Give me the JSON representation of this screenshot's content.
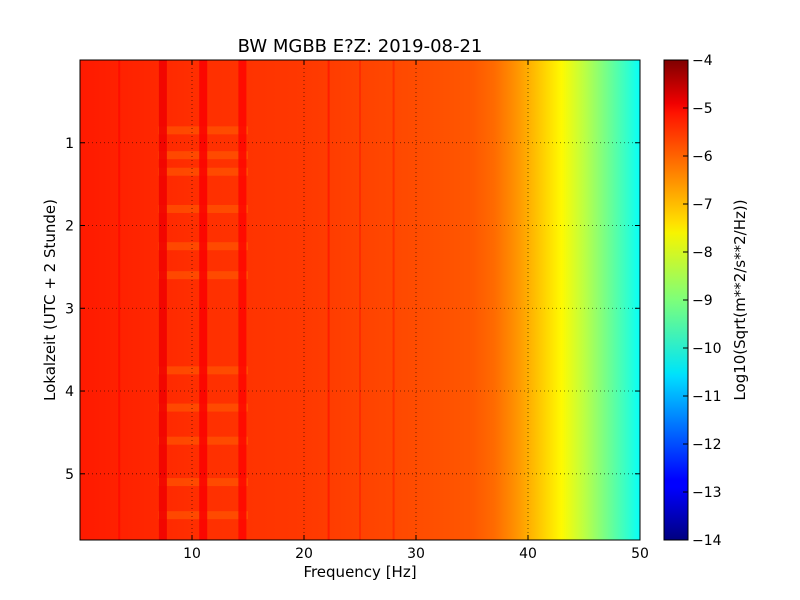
{
  "chart_data": {
    "type": "heatmap",
    "title": "BW MGBB E?Z: 2019-08-21",
    "xlabel": "Frequency [Hz]",
    "ylabel": "Lokalzeit (UTC + 2 Stunde)",
    "colorbar_label": "Log10(Sqrt(m**2/s**2/Hz))",
    "xlim": [
      0,
      50
    ],
    "ylim": [
      0,
      5.8
    ],
    "y_inverted": true,
    "x_ticks": [
      10,
      20,
      30,
      40,
      50
    ],
    "y_ticks": [
      1,
      2,
      3,
      4,
      5
    ],
    "colorbar_range": [
      -14,
      -4
    ],
    "colorbar_ticks": [
      -4,
      -5,
      -6,
      -7,
      -8,
      -9,
      -10,
      -11,
      -12,
      -13,
      -14
    ],
    "colormap": "jet",
    "grid": true,
    "background_value": -5.9,
    "spectrum_profile": {
      "frequency": [
        0,
        5,
        10,
        20,
        25,
        30,
        35,
        37,
        39,
        41,
        43,
        45,
        47,
        49,
        50
      ],
      "value": [
        -5.5,
        -5.6,
        -5.7,
        -5.8,
        -5.9,
        -6.0,
        -6.1,
        -6.3,
        -6.7,
        -7.2,
        -7.7,
        -8.4,
        -9.1,
        -9.8,
        -10.2
      ]
    },
    "strong_lines": [
      {
        "frequency": 7.4,
        "value": -5.1
      },
      {
        "frequency": 14.5,
        "value": -5.3
      },
      {
        "frequency": 11.0,
        "value": -5.2
      }
    ],
    "weak_lines": [
      {
        "frequency": 3.5,
        "value": -5.3
      },
      {
        "frequency": 22.2,
        "value": -5.4
      },
      {
        "frequency": 25.0,
        "value": -5.6
      },
      {
        "frequency": 28.0,
        "value": -5.6
      }
    ],
    "intermittent_bands": [
      {
        "time": 0.85,
        "value": -6.2
      },
      {
        "time": 1.15,
        "value": -6.2
      },
      {
        "time": 1.35,
        "value": -6.2
      },
      {
        "time": 1.8,
        "value": -6.2
      },
      {
        "time": 2.25,
        "value": -6.2
      },
      {
        "time": 2.6,
        "value": -6.2
      },
      {
        "time": 3.75,
        "value": -6.2
      },
      {
        "time": 4.2,
        "value": -6.2
      },
      {
        "time": 4.6,
        "value": -6.2
      },
      {
        "time": 5.1,
        "value": -6.2
      },
      {
        "time": 5.5,
        "value": -6.2
      }
    ]
  }
}
